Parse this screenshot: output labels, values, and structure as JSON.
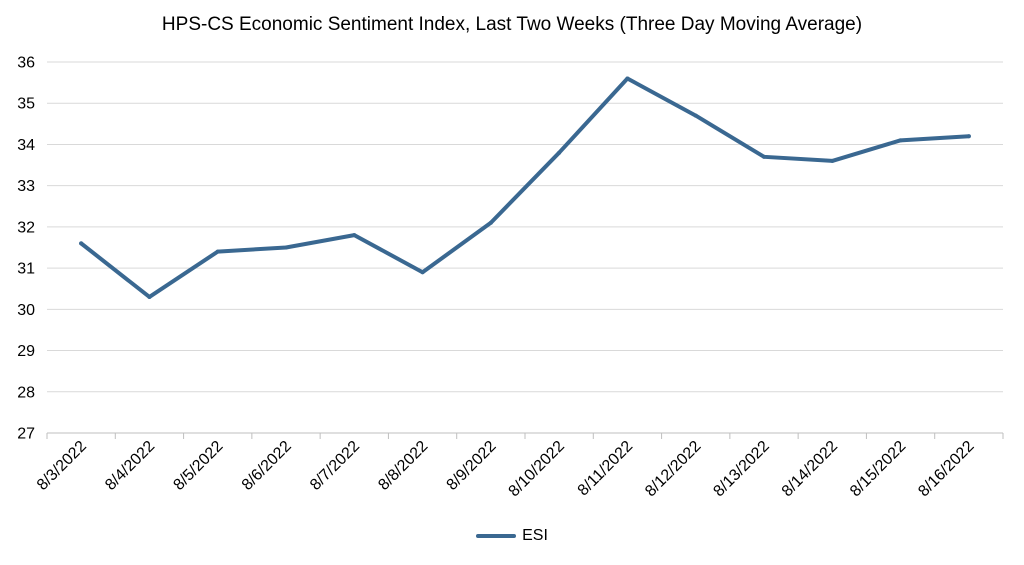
{
  "chart_data": {
    "type": "line",
    "title": "HPS-CS Economic Sentiment Index, Last Two Weeks (Three Day Moving Average)",
    "categories": [
      "8/3/2022",
      "8/4/2022",
      "8/5/2022",
      "8/6/2022",
      "8/7/2022",
      "8/8/2022",
      "8/9/2022",
      "8/10/2022",
      "8/11/2022",
      "8/12/2022",
      "8/13/2022",
      "8/14/2022",
      "8/15/2022",
      "8/16/2022"
    ],
    "series": [
      {
        "name": "ESI",
        "color": "#3a6891",
        "values": [
          31.6,
          30.3,
          31.4,
          31.5,
          31.8,
          30.9,
          32.1,
          33.8,
          35.6,
          34.7,
          33.7,
          33.6,
          34.1,
          34.2
        ]
      }
    ],
    "ylim": [
      27,
      36
    ],
    "yticks": [
      "27",
      "28",
      "29",
      "30",
      "31",
      "32",
      "33",
      "34",
      "35",
      "36"
    ],
    "grid": true,
    "legend_position": "bottom"
  }
}
